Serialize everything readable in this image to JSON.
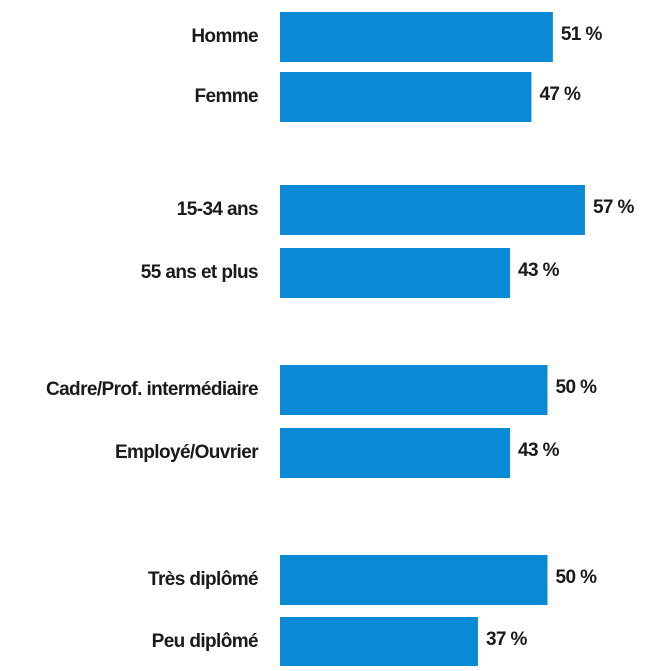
{
  "chart_data": {
    "type": "bar",
    "orientation": "horizontal",
    "categories": [
      "Homme",
      "Femme",
      "15-34 ans",
      "55 ans et plus",
      "Cadre/Prof. intermédiaire",
      "Employé/Ouvrier",
      "Très diplômé",
      "Peu diplômé"
    ],
    "values": [
      51,
      47,
      57,
      43,
      50,
      43,
      50,
      37
    ],
    "value_labels": [
      "51 %",
      "47 %",
      "57 %",
      "43 %",
      "50 %",
      "43 %",
      "50 %",
      "37 %"
    ],
    "color": "#0a8ad4"
  }
}
